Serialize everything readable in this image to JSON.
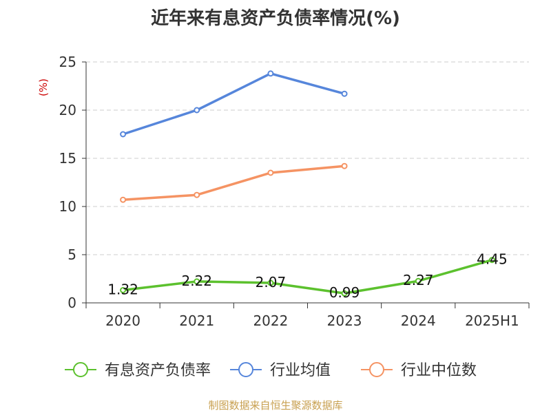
{
  "chart_data": {
    "type": "line",
    "title": "近年来有息资产负债率情况(%)",
    "ylabel": "(%)",
    "xlabel": "",
    "categories": [
      "2020",
      "2021",
      "2022",
      "2023",
      "2024",
      "2025H1"
    ],
    "ylim": [
      0,
      25
    ],
    "yticks": [
      0,
      5,
      10,
      15,
      20,
      25
    ],
    "grid": true,
    "legend_position": "bottom",
    "series": [
      {
        "name": "有息资产负债率",
        "color": "#5cc12e",
        "values": [
          1.32,
          2.22,
          2.07,
          0.99,
          2.27,
          4.45
        ],
        "labels": [
          "1.32",
          "2.22",
          "2.07",
          "0.99",
          "2.27",
          "4.45"
        ]
      },
      {
        "name": "行业均值",
        "color": "#5686db",
        "values": [
          17.5,
          20.0,
          23.8,
          21.7,
          null,
          null
        ]
      },
      {
        "name": "行业中位数",
        "color": "#f59363",
        "values": [
          10.7,
          11.2,
          13.5,
          14.2,
          null,
          null
        ]
      }
    ]
  },
  "source_text": "制图数据来自恒生聚源数据库"
}
